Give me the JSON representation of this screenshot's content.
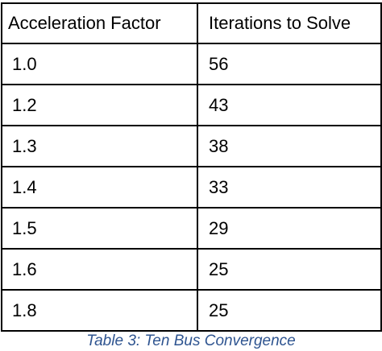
{
  "table": {
    "headers": [
      "Acceleration Factor",
      "Iterations to Solve"
    ],
    "rows": [
      [
        "1.0",
        "56"
      ],
      [
        "1.2",
        "43"
      ],
      [
        "1.3",
        "38"
      ],
      [
        "1.4",
        "33"
      ],
      [
        "1.5",
        "29"
      ],
      [
        "1.6",
        "25"
      ],
      [
        "1.8",
        "25"
      ]
    ]
  },
  "caption": "Table 3: Ten Bus Convergence",
  "colors": {
    "caption": "#2e5490",
    "border": "#000000"
  }
}
